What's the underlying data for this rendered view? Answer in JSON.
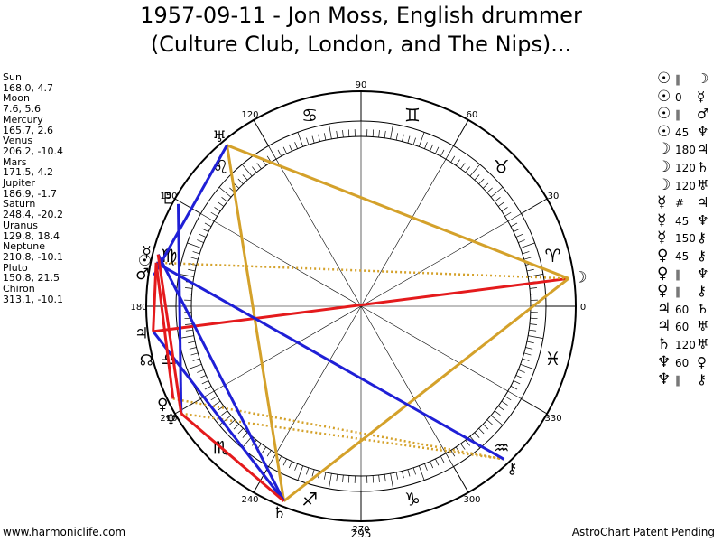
{
  "title": {
    "line1": "1957-09-11 - Jon Moss, English drummer",
    "line2": "(Culture Club, London, and The Nips)..."
  },
  "planets": [
    {
      "name": "Sun",
      "pos": "168.0, 4.7"
    },
    {
      "name": "Moon",
      "pos": "7.6, 5.6"
    },
    {
      "name": "Mercury",
      "pos": "165.7, 2.6"
    },
    {
      "name": "Venus",
      "pos": "206.2, -10.4"
    },
    {
      "name": "Mars",
      "pos": "171.5, 4.2"
    },
    {
      "name": "Jupiter",
      "pos": "186.9, -1.7"
    },
    {
      "name": "Saturn",
      "pos": "248.4, -20.2"
    },
    {
      "name": "Uranus",
      "pos": "129.8, 18.4"
    },
    {
      "name": "Neptune",
      "pos": "210.8, -10.1"
    },
    {
      "name": "Pluto",
      "pos": "150.8, 21.5"
    },
    {
      "name": "Chiron",
      "pos": "313.1, -10.1"
    }
  ],
  "aspects": [
    {
      "p1": "☉",
      "aspect": "∥",
      "p2": "☽"
    },
    {
      "p1": "☉",
      "aspect": "0",
      "p2": "☿"
    },
    {
      "p1": "☉",
      "aspect": "∥",
      "p2": "♂"
    },
    {
      "p1": "☉",
      "aspect": "45",
      "p2": "♆"
    },
    {
      "p1": "☽",
      "aspect": "180",
      "p2": "♃"
    },
    {
      "p1": "☽",
      "aspect": "120",
      "p2": "♄"
    },
    {
      "p1": "☽",
      "aspect": "120",
      "p2": "♅"
    },
    {
      "p1": "☿",
      "aspect": "#",
      "p2": "♃"
    },
    {
      "p1": "☿",
      "aspect": "45",
      "p2": "♆"
    },
    {
      "p1": "☿",
      "aspect": "150",
      "p2": "⚷"
    },
    {
      "p1": "♀",
      "aspect": "45",
      "p2": "⚷"
    },
    {
      "p1": "♀",
      "aspect": "∥",
      "p2": "♆"
    },
    {
      "p1": "♀",
      "aspect": "∥",
      "p2": "⚷"
    },
    {
      "p1": "♃",
      "aspect": "60",
      "p2": "♄"
    },
    {
      "p1": "♃",
      "aspect": "60",
      "p2": "♅"
    },
    {
      "p1": "♄",
      "aspect": "120",
      "p2": "♅"
    },
    {
      "p1": "♆",
      "aspect": "60",
      "p2": "♀"
    },
    {
      "p1": "♆",
      "aspect": "∥",
      "p2": "⚷"
    }
  ],
  "chart": {
    "degree_labels": [
      "0",
      "30",
      "60",
      "90",
      "120",
      "150",
      "180",
      "210",
      "240",
      "270",
      "300",
      "330"
    ],
    "bottom_number": "295",
    "zodiac_signs": [
      "♈",
      "♉",
      "♊",
      "♋",
      "♌",
      "♍",
      "♎",
      "♏",
      "♐",
      "♑",
      "♒",
      "♓"
    ],
    "planet_glyphs": [
      {
        "glyph": "☉",
        "lon": 168.0
      },
      {
        "glyph": "☽",
        "lon": 7.6
      },
      {
        "glyph": "☿",
        "lon": 165.7
      },
      {
        "glyph": "♀",
        "lon": 206.2
      },
      {
        "glyph": "♂",
        "lon": 171.5
      },
      {
        "glyph": "♃",
        "lon": 186.9
      },
      {
        "glyph": "♄",
        "lon": 248.4
      },
      {
        "glyph": "♅",
        "lon": 129.8
      },
      {
        "glyph": "♆",
        "lon": 210.8
      },
      {
        "glyph": "♇",
        "lon": 150.8
      },
      {
        "glyph": "⚷",
        "lon": 313.1
      },
      {
        "glyph": "☊",
        "lon": 194.0
      }
    ],
    "aspect_lines": [
      {
        "a": 7.6,
        "b": 186.9,
        "color": "#e41a1c",
        "style": "solid"
      },
      {
        "a": 7.6,
        "b": 248.4,
        "color": "#d4a12a",
        "style": "solid"
      },
      {
        "a": 7.6,
        "b": 129.8,
        "color": "#d4a12a",
        "style": "solid"
      },
      {
        "a": 129.8,
        "b": 248.4,
        "color": "#d4a12a",
        "style": "solid"
      },
      {
        "a": 7.6,
        "b": 168.0,
        "color": "#d4a12a",
        "style": "dotted"
      },
      {
        "a": 206.2,
        "b": 313.1,
        "color": "#d4a12a",
        "style": "dotted"
      },
      {
        "a": 210.8,
        "b": 313.1,
        "color": "#d4a12a",
        "style": "dotted"
      },
      {
        "a": 168.0,
        "b": 313.1,
        "color": "#1f1fd6",
        "style": "solid"
      },
      {
        "a": 150.8,
        "b": 210.8,
        "color": "#1f1fd6",
        "style": "solid"
      },
      {
        "a": 129.8,
        "b": 171.5,
        "color": "#1f1fd6",
        "style": "solid"
      },
      {
        "a": 165.7,
        "b": 248.4,
        "color": "#1f1fd6",
        "style": "solid"
      },
      {
        "a": 186.9,
        "b": 248.4,
        "color": "#1f1fd6",
        "style": "solid"
      },
      {
        "a": 165.7,
        "b": 210.8,
        "color": "#e41a1c",
        "style": "solid"
      },
      {
        "a": 168.0,
        "b": 186.9,
        "color": "#e41a1c",
        "style": "solid"
      },
      {
        "a": 168.0,
        "b": 206.2,
        "color": "#e41a1c",
        "style": "solid"
      },
      {
        "a": 210.8,
        "b": 248.4,
        "color": "#e41a1c",
        "style": "solid"
      }
    ]
  },
  "footer": {
    "left": "www.harmoniclife.com",
    "right": "AstroChart Patent Pending"
  }
}
